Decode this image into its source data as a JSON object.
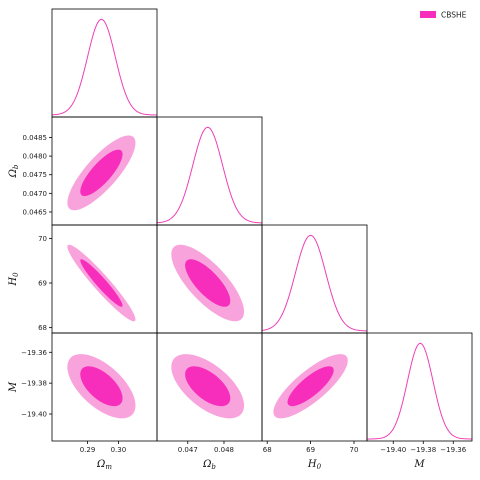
{
  "colors": {
    "contour_outer": "#f9a3dd",
    "contour_inner": "#f72ebc",
    "line": "#ef3fb8",
    "frame": "#000000"
  },
  "chart_data": {
    "type": "corner",
    "title": "",
    "legend": {
      "entries": [
        "CBSHE"
      ],
      "placement": "top-right"
    },
    "params": [
      {
        "key": "om",
        "label": "Ω_m",
        "display": "Ωm",
        "range": [
          0.2785,
          0.3125
        ],
        "ticks": [
          0.29,
          0.3
        ],
        "tick_labels": [
          "0.29",
          "0.30"
        ],
        "mean": 0.2945,
        "sigma": 0.0045
      },
      {
        "key": "ob",
        "label": "Ω_b",
        "display": "Ωb",
        "range": [
          0.04615,
          0.04905
        ],
        "ticks": [
          0.0465,
          0.047,
          0.0475,
          0.048,
          0.0485
        ],
        "tick_labels": [
          "0.0465",
          "0.0470",
          "0.0475",
          "0.0480",
          "0.0485"
        ],
        "bottom_ticks": [
          0.047,
          0.048
        ],
        "bottom_tick_labels": [
          "0.047",
          "0.048"
        ],
        "mean": 0.04755,
        "sigma": 0.00041
      },
      {
        "key": "h0",
        "label": "H_0",
        "display": "H0",
        "range": [
          67.88,
          70.3
        ],
        "ticks": [
          68,
          69,
          70
        ],
        "tick_labels": [
          "68",
          "69",
          "70"
        ],
        "mean": 69.0,
        "sigma": 0.35
      },
      {
        "key": "m",
        "label": "M",
        "display": "M",
        "range": [
          -19.4175,
          -19.3475
        ],
        "ticks": [
          -19.4,
          -19.38,
          -19.36
        ],
        "tick_labels": [
          "−19.40",
          "−19.38",
          "−19.36"
        ],
        "mean": -19.382,
        "sigma": 0.0085
      }
    ],
    "correlations": [
      {
        "pair": [
          "om",
          "ob"
        ],
        "rho": 0.8
      },
      {
        "pair": [
          "om",
          "h0"
        ],
        "rho": -0.95
      },
      {
        "pair": [
          "ob",
          "h0"
        ],
        "rho": -0.75
      },
      {
        "pair": [
          "om",
          "m"
        ],
        "rho": -0.6
      },
      {
        "pair": [
          "ob",
          "m"
        ],
        "rho": -0.6
      },
      {
        "pair": [
          "h0",
          "m"
        ],
        "rho": 0.8
      }
    ],
    "contour_levels": [
      "68%",
      "95%"
    ]
  }
}
